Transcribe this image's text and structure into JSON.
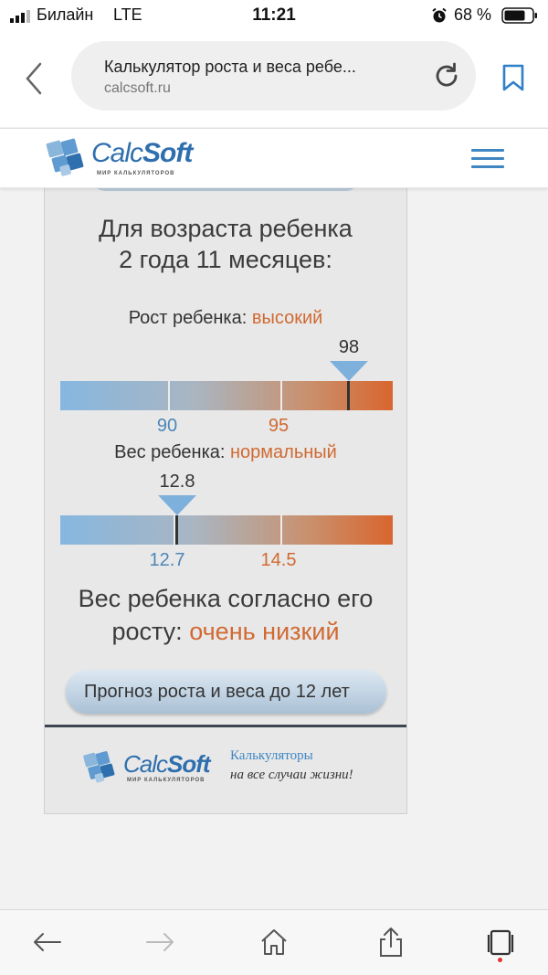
{
  "status_bar": {
    "carrier": "Билайн",
    "network": "LTE",
    "time": "11:21",
    "battery_percent": "68 %"
  },
  "browser": {
    "page_title": "Калькулятор роста и веса ребе...",
    "host": "calcsoft.ru"
  },
  "site": {
    "logo_text_light": "Calc",
    "logo_text_bold": "Soft",
    "logo_subtitle": "МИР КАЛЬКУЛЯТОРОВ"
  },
  "result": {
    "age_line1": "Для возраста ребенка",
    "age_line2": "2 года 11 месяцев:",
    "height": {
      "label": "Рост ребенка: ",
      "value": "высокий",
      "pointer_value": "98",
      "scale_low": "90",
      "scale_high": "95"
    },
    "weight": {
      "label": "Вес ребенка: ",
      "value": "нормальный",
      "pointer_value": "12.8",
      "scale_low": "12.7",
      "scale_high": "14.5"
    },
    "verdict_line1": "Вес ребенка согласно его",
    "verdict_line2_prefix": "росту: ",
    "verdict_value": "очень низкий",
    "forecast_button": "Прогноз роста и веса до 12 лет"
  },
  "footer": {
    "tagline_1": "Калькуляторы",
    "tagline_2": "на все случаи жизни!"
  },
  "colors": {
    "accent_orange": "#d06a32",
    "accent_blue": "#3f86c2"
  }
}
